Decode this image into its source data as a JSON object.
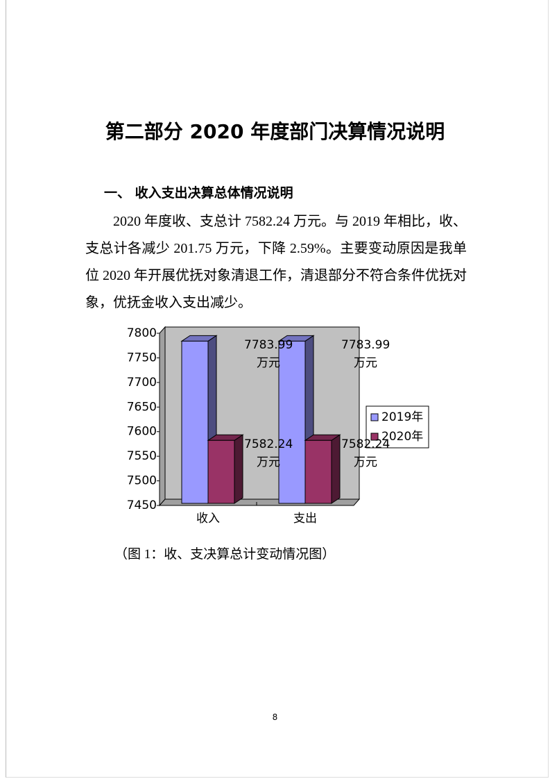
{
  "title": "第二部分 2020 年度部门决算情况说明",
  "section_heading": "一、 收入支出决算总体情况说明",
  "paragraph": "2020 年度收、支总计 7582.24 万元。与 2019 年相比，收、支总计各减少 201.75 万元，下降 2.59%。主要变动原因是我单位 2020 年开展优抚对象清退工作，清退部分不符合条件优抚对象，优抚金收入支出减少。",
  "caption": "（图 1：收、支决算总计变动情况图）",
  "page_number": "8",
  "chart_data": {
    "type": "bar",
    "categories": [
      "收入",
      "支出"
    ],
    "series": [
      {
        "name": "2019年",
        "color": "#9999ff",
        "values": [
          7783.99,
          7783.99
        ],
        "value_labels": [
          "7783.99\n万元",
          "7783.99\n万元"
        ]
      },
      {
        "name": "2020年",
        "color": "#993366",
        "values": [
          7582.24,
          7582.24
        ],
        "value_labels": [
          "7582.24\n万元",
          "7582.24\n万元"
        ]
      }
    ],
    "ylim": [
      7450,
      7800
    ],
    "yticks": [
      7450,
      7500,
      7550,
      7600,
      7650,
      7700,
      7750,
      7800
    ],
    "legend": "right"
  }
}
